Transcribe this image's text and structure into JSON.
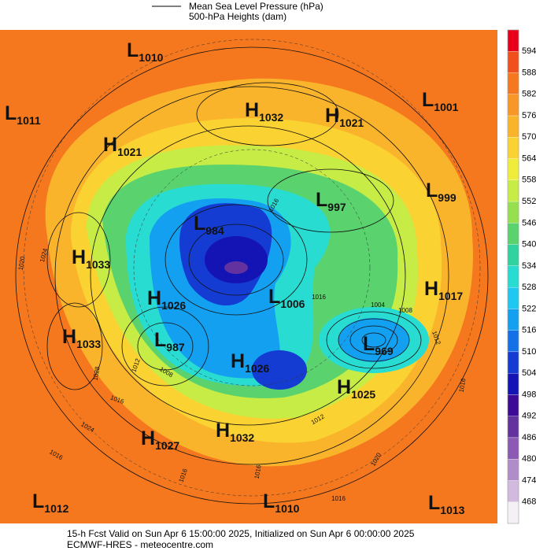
{
  "legend": {
    "lines": [
      "Mean Sea Level Pressure (hPa)",
      "500-hPa Heights (dam)"
    ]
  },
  "centers": [
    {
      "letter": "L",
      "value": "1010"
    },
    {
      "letter": "L",
      "value": "1011"
    },
    {
      "letter": "H",
      "value": "1032"
    },
    {
      "letter": "H",
      "value": "1021"
    },
    {
      "letter": "L",
      "value": "1001"
    },
    {
      "letter": "H",
      "value": "1021"
    },
    {
      "letter": "L",
      "value": "997"
    },
    {
      "letter": "L",
      "value": "999"
    },
    {
      "letter": "L",
      "value": "984"
    },
    {
      "letter": "H",
      "value": "1033"
    },
    {
      "letter": "H",
      "value": "1026"
    },
    {
      "letter": "L",
      "value": "1006"
    },
    {
      "letter": "H",
      "value": "1017"
    },
    {
      "letter": "H",
      "value": "1033"
    },
    {
      "letter": "L",
      "value": "987"
    },
    {
      "letter": "L",
      "value": "969"
    },
    {
      "letter": "H",
      "value": "1026"
    },
    {
      "letter": "H",
      "value": "1025"
    },
    {
      "letter": "H",
      "value": "1032"
    },
    {
      "letter": "H",
      "value": "1027"
    },
    {
      "letter": "L",
      "value": "1012"
    },
    {
      "letter": "L",
      "value": "1010"
    },
    {
      "letter": "L",
      "value": "1013"
    }
  ],
  "isobar_labels": [
    "1020",
    "1024",
    "1028",
    "1016",
    "1024",
    "1016",
    "1008",
    "1012",
    "1016",
    "1004",
    "1008",
    "1012",
    "1016",
    "1016",
    "1020",
    "1016",
    "1016",
    "1016",
    "1012"
  ],
  "colorbar": {
    "labels": [
      "594",
      "588",
      "582",
      "576",
      "570",
      "564",
      "558",
      "552",
      "546",
      "540",
      "534",
      "528",
      "522",
      "516",
      "510",
      "504",
      "498",
      "492",
      "486",
      "480",
      "474",
      "468"
    ],
    "colors": [
      "#e8001a",
      "#f0501c",
      "#f5781e",
      "#f89628",
      "#fab42c",
      "#fad232",
      "#f0ec3c",
      "#c8ec46",
      "#96e050",
      "#5ad26e",
      "#32d2a0",
      "#28dcd2",
      "#1ec8f0",
      "#14a0f0",
      "#1470e6",
      "#143cd2",
      "#1414b4",
      "#3c0a96",
      "#64329e",
      "#8c5ab4",
      "#b08cc8",
      "#d2b9de",
      "#f5f0f5"
    ]
  },
  "footer": {
    "lines": [
      "15-h Fcst Valid on Sun Apr  6 15:00:00 2025, Initialized on Sun Apr  6 00:00:00 2025",
      "ECMWF-HRES  - meteocentre.com"
    ]
  }
}
